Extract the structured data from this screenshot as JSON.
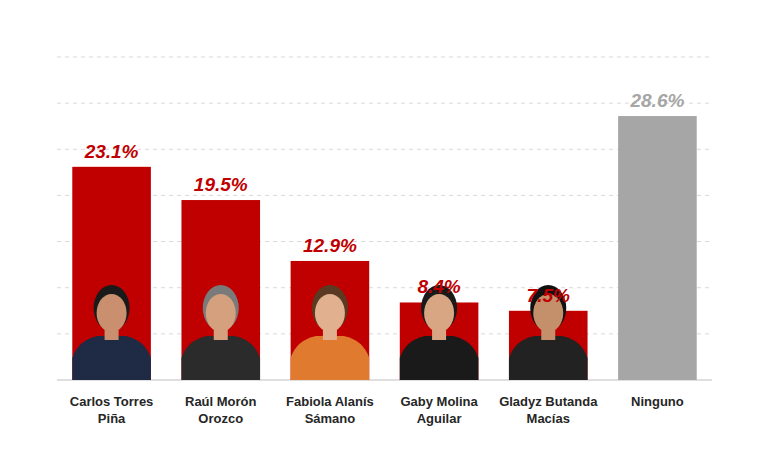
{
  "chart_data": {
    "type": "bar",
    "categories": [
      "Carlos Torres Piña",
      "Raúl Morón Orozco",
      "Fabiola Alanís Sámano",
      "Gaby Molina Aguilar",
      "Gladyz Butanda Macías",
      "Ninguno"
    ],
    "values": [
      23.1,
      19.5,
      12.9,
      8.4,
      7.5,
      28.6
    ],
    "value_labels": [
      "23.1%",
      "19.5%",
      "12.9%",
      "8.4%",
      "7.5%",
      "28.6%"
    ],
    "colors": [
      "#c00000",
      "#c00000",
      "#c00000",
      "#c00000",
      "#c00000",
      "#a6a6a6"
    ],
    "ylim": [
      0,
      35
    ],
    "yticks": [
      0,
      5,
      10,
      15,
      20,
      25,
      30,
      35
    ],
    "grid": true,
    "data_labels": true,
    "tick_labels": "x"
  }
}
